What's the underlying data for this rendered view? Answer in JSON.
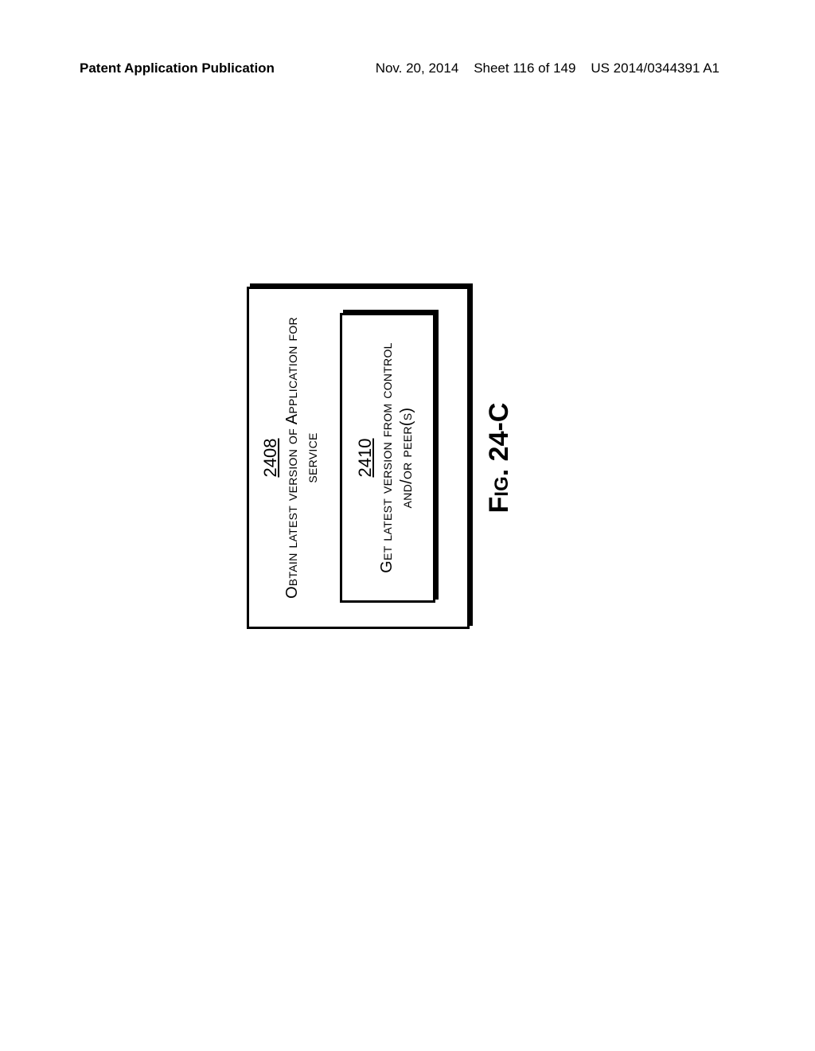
{
  "header": {
    "left": "Patent Application Publication",
    "date": "Nov. 20, 2014",
    "sheet": "Sheet 116 of 149",
    "pubno": "US 2014/0344391 A1"
  },
  "outer": {
    "ref": "2408",
    "title_line1": "Obtain latest version of Application for",
    "title_line2": "service"
  },
  "inner": {
    "ref": "2410",
    "title_line1": "Get latest version from control",
    "title_line2": "and/or peer(s)"
  },
  "caption": {
    "fig": "Fig.",
    "num": "24-C"
  },
  "colors": {
    "text": "#000000",
    "bg": "#ffffff"
  }
}
